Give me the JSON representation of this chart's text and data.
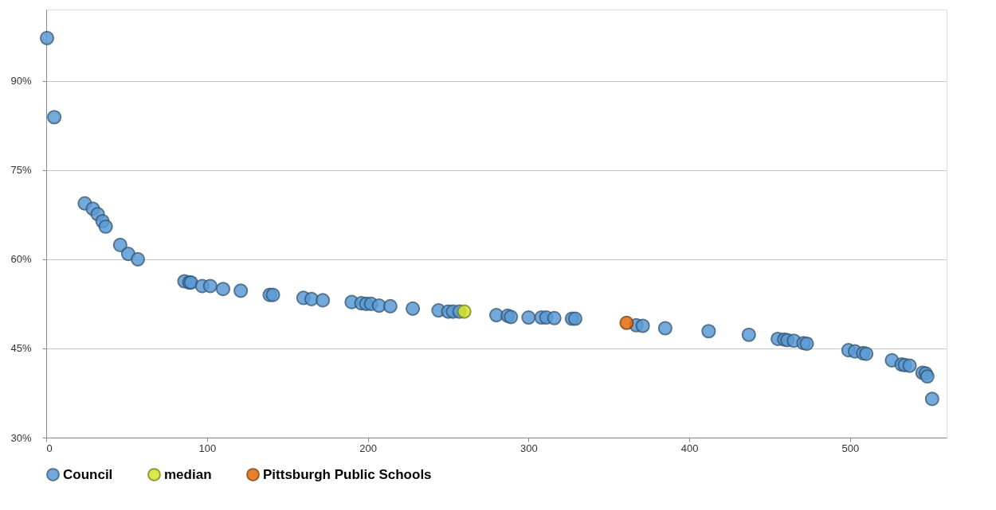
{
  "chart_data": {
    "type": "scatter",
    "series": [
      {
        "name": "Council",
        "color": "#5b9bd5",
        "x": [
          0.5,
          5,
          24,
          29,
          32,
          35,
          37,
          46,
          51,
          57,
          86,
          89,
          90,
          97,
          102,
          110,
          121,
          139,
          141,
          160,
          165,
          172,
          190,
          196,
          199,
          202,
          207,
          214,
          228,
          244,
          250,
          253,
          257,
          280,
          287,
          289,
          300,
          308,
          311,
          316,
          327,
          329,
          367,
          371,
          385,
          412,
          437,
          455,
          459,
          461,
          465,
          471,
          473,
          499,
          503,
          508,
          510,
          526,
          532,
          534,
          537,
          545,
          547,
          548,
          551
        ],
        "values": [
          97.2,
          83.9,
          69.4,
          68.5,
          67.6,
          66.4,
          65.5,
          62.4,
          60.9,
          60.0,
          56.3,
          56.1,
          56.1,
          55.5,
          55.5,
          55.0,
          54.7,
          54.0,
          54.0,
          53.5,
          53.3,
          53.1,
          52.8,
          52.6,
          52.5,
          52.5,
          52.2,
          52.1,
          51.7,
          51.4,
          51.2,
          51.2,
          51.2,
          50.6,
          50.5,
          50.3,
          50.2,
          50.2,
          50.2,
          50.1,
          50.0,
          50.0,
          48.9,
          48.8,
          48.4,
          47.9,
          47.3,
          46.6,
          46.5,
          46.4,
          46.3,
          45.9,
          45.8,
          44.7,
          44.5,
          44.2,
          44.1,
          43.0,
          42.3,
          42.2,
          42.1,
          40.9,
          40.8,
          40.3,
          36.5
        ]
      },
      {
        "name": "median",
        "color": "#d4e62a",
        "x": [
          260
        ],
        "values": [
          51.2
        ]
      },
      {
        "name": "Pittsburgh Public Schools",
        "color": "#e36c09",
        "x": [
          361
        ],
        "values": [
          49.3
        ]
      }
    ],
    "xlim": [
      0,
      560
    ],
    "xticks": [
      0,
      100,
      200,
      300,
      400,
      500
    ],
    "ylim": [
      30,
      102
    ],
    "yticks": [
      {
        "value": 30,
        "label": "30%"
      },
      {
        "value": 45,
        "label": "45%"
      },
      {
        "value": 60,
        "label": "60%"
      },
      {
        "value": 75,
        "label": "75%"
      },
      {
        "value": 90,
        "label": "90%"
      }
    ],
    "grid": "y",
    "legend": "bottom",
    "marker": "circle"
  }
}
